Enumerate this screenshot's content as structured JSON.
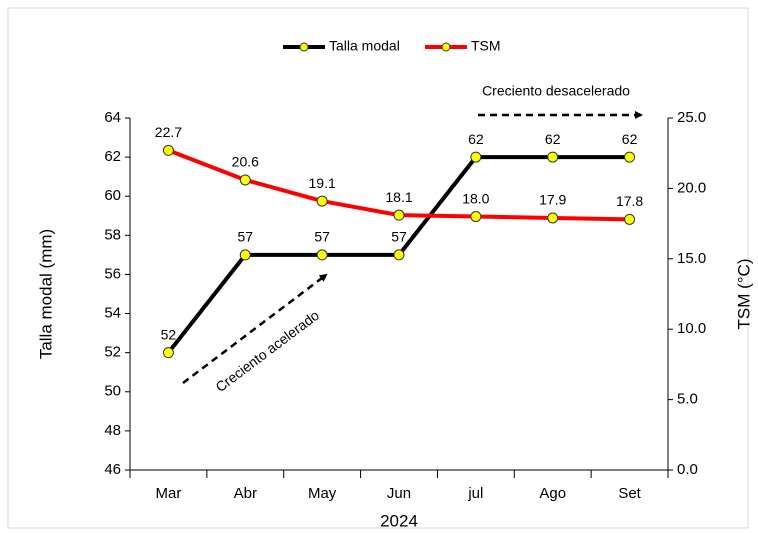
{
  "chart_data": {
    "type": "line",
    "categories": [
      "Mar",
      "Abr",
      "May",
      "Jun",
      "jul",
      "Ago",
      "Set"
    ],
    "xlabel": "2024",
    "ylabel": "Talla modal (mm)",
    "y2label": "TSM (°C)",
    "ylim": [
      46,
      64
    ],
    "yticks": [
      46,
      48,
      50,
      52,
      54,
      56,
      58,
      60,
      62,
      64
    ],
    "y2lim": [
      0,
      25
    ],
    "y2ticks": [
      {
        "value": 0,
        "label": "0.0"
      },
      {
        "value": 5,
        "label": "5.0"
      },
      {
        "value": 10,
        "label": "10.0"
      },
      {
        "value": 15,
        "label": "15.0"
      },
      {
        "value": 20,
        "label": "20.0"
      },
      {
        "value": 25,
        "label": "25.0"
      }
    ],
    "marker_color": "#ffff00",
    "series": [
      {
        "name": "Talla modal",
        "color": "#000000",
        "values": [
          52,
          57,
          57,
          57,
          62,
          62,
          62
        ]
      },
      {
        "name": "TSM",
        "color": "#ff0000",
        "axis": "y2",
        "values": [
          22.7,
          20.6,
          19.1,
          18.1,
          18.0,
          17.9,
          17.8
        ],
        "value_labels": [
          "22.7",
          "20.6",
          "19.1",
          "18.1",
          "18.0",
          "17.9",
          "17.8"
        ]
      }
    ],
    "annotations": [
      "Creciento acelerado",
      "Creciento desacelerado"
    ]
  }
}
